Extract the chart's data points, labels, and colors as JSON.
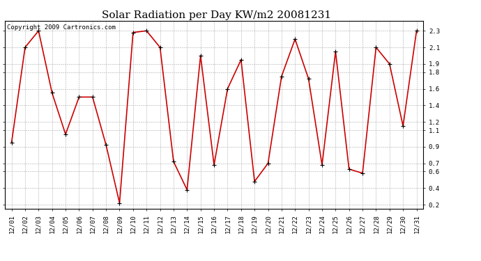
{
  "title": "Solar Radiation per Day KW/m2 20081231",
  "copyright": "Copyright 2009 Cartronics.com",
  "dates": [
    "12/01",
    "12/02",
    "12/03",
    "12/04",
    "12/05",
    "12/06",
    "12/07",
    "12/08",
    "12/09",
    "12/10",
    "12/11",
    "12/12",
    "12/13",
    "12/14",
    "12/15",
    "12/16",
    "12/17",
    "12/18",
    "12/19",
    "12/20",
    "12/21",
    "12/22",
    "12/23",
    "12/24",
    "12/25",
    "12/26",
    "12/27",
    "12/28",
    "12/29",
    "12/30",
    "12/31"
  ],
  "values": [
    0.95,
    2.1,
    2.3,
    1.55,
    1.05,
    1.5,
    1.5,
    0.92,
    0.22,
    2.28,
    2.3,
    2.1,
    0.72,
    0.38,
    2.0,
    0.68,
    1.6,
    1.95,
    0.48,
    0.7,
    1.75,
    2.2,
    1.72,
    0.68,
    2.05,
    0.63,
    0.58,
    2.1,
    1.9,
    1.15,
    2.3
  ],
  "line_color": "#cc0000",
  "marker_color": "#000000",
  "bg_color": "#ffffff",
  "plot_bg_color": "#ffffff",
  "grid_color": "#aaaaaa",
  "ylim": [
    0.15,
    2.42
  ],
  "yticks_display": [
    0.2,
    0.4,
    0.6,
    0.7,
    0.9,
    1.1,
    1.2,
    1.4,
    1.6,
    1.8,
    1.9,
    2.1,
    2.3
  ],
  "title_fontsize": 11,
  "tick_fontsize": 6.5,
  "copyright_fontsize": 6.5
}
